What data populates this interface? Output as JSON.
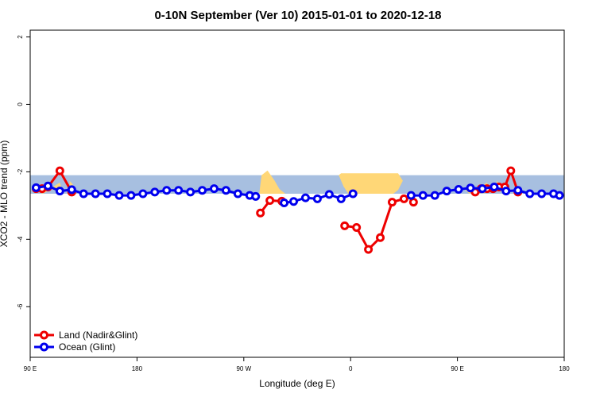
{
  "chart_data": {
    "type": "line",
    "title": "0-10N September (Ver 10)   2015-01-01 to 2020-12-18",
    "xlabel": "Longitude (deg E)",
    "ylabel": "XCO2 - MLO trend (ppm)",
    "xlim": [
      90,
      540
    ],
    "ylim": [
      -7.5,
      2.2
    ],
    "x_ticks": [
      {
        "value": 90,
        "label": "90 E"
      },
      {
        "value": 180,
        "label": "180"
      },
      {
        "value": 270,
        "label": "90 W"
      },
      {
        "value": 360,
        "label": "0"
      },
      {
        "value": 450,
        "label": "90 E"
      },
      {
        "value": 540,
        "label": "180"
      }
    ],
    "y_ticks": [
      {
        "value": 2,
        "label": "2"
      },
      {
        "value": 0,
        "label": "0"
      },
      {
        "value": -2,
        "label": "-2"
      },
      {
        "value": -4,
        "label": "-4"
      },
      {
        "value": -6,
        "label": "-6"
      }
    ],
    "grid": false,
    "legend_position": "bottom-left",
    "map_band": {
      "y_top": -2.1,
      "y_bottom": -2.65,
      "ocean_color": "#a7bfe0",
      "land_color": "#ffd777"
    },
    "series": [
      {
        "name": "Land (Nadir&Glint)",
        "color": "#ee0000",
        "segments": [
          {
            "x": [
              95,
              100,
              105,
              115,
              125
            ],
            "y": [
              -2.5,
              -2.5,
              -2.45,
              -1.97,
              -2.6
            ]
          },
          {
            "x": [
              284,
              292,
              302
            ],
            "y": [
              -3.22,
              -2.85,
              -2.87
            ]
          },
          {
            "x": [
              355,
              365,
              375,
              385,
              395,
              405
            ],
            "y": [
              -3.6,
              -3.65,
              -4.3,
              -3.95,
              -2.9,
              -2.8
            ]
          },
          {
            "x": [
              413
            ],
            "y": [
              -2.9
            ]
          },
          {
            "x": [
              465,
              470,
              475,
              480,
              485,
              490,
              495,
              501
            ],
            "y": [
              -2.6,
              -2.5,
              -2.5,
              -2.5,
              -2.45,
              -2.45,
              -1.97,
              -2.6
            ]
          }
        ]
      },
      {
        "name": "Ocean (Glint)",
        "color": "#0000ee",
        "segments": [
          {
            "x": [
              95,
              105,
              115,
              125,
              135,
              145,
              155,
              165,
              175,
              185,
              195,
              205,
              215,
              225,
              235,
              245,
              255,
              265,
              275,
              280
            ],
            "y": [
              -2.47,
              -2.42,
              -2.57,
              -2.53,
              -2.65,
              -2.65,
              -2.65,
              -2.7,
              -2.7,
              -2.65,
              -2.6,
              -2.55,
              -2.55,
              -2.6,
              -2.55,
              -2.5,
              -2.55,
              -2.65,
              -2.7,
              -2.73
            ]
          },
          {
            "x": [
              304,
              312,
              322,
              332,
              342,
              352,
              362
            ],
            "y": [
              -2.92,
              -2.88,
              -2.77,
              -2.8,
              -2.67,
              -2.8,
              -2.65
            ]
          },
          {
            "x": [
              411,
              421,
              431,
              441,
              451,
              461,
              471,
              481,
              491,
              501,
              511,
              521,
              531,
              536
            ],
            "y": [
              -2.7,
              -2.7,
              -2.7,
              -2.57,
              -2.52,
              -2.48,
              -2.5,
              -2.45,
              -2.57,
              -2.55,
              -2.65,
              -2.65,
              -2.65,
              -2.7
            ]
          }
        ]
      }
    ]
  }
}
